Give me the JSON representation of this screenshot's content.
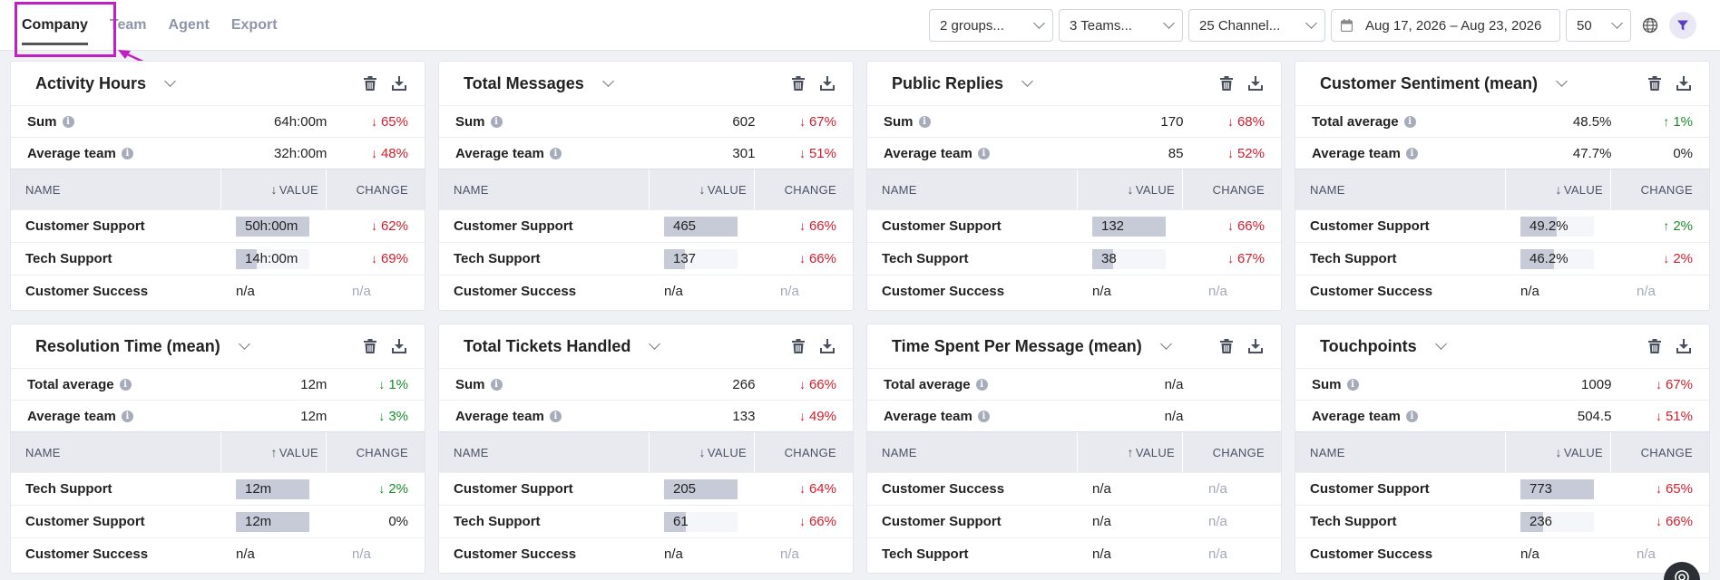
{
  "tabs": [
    {
      "label": "Company",
      "active": true
    },
    {
      "label": "Team",
      "active": false
    },
    {
      "label": "Agent",
      "active": false
    },
    {
      "label": "Export",
      "active": false
    }
  ],
  "filters": {
    "groups": "2 groups...",
    "teams": "3 Teams...",
    "channels": "25 Channel...",
    "date_range": "Aug 17, 2026 – Aug 23, 2026",
    "page_size": "50"
  },
  "icons": {
    "globe": "globe-icon",
    "filter": "filter-icon",
    "delete": "trash-icon",
    "download": "download-icon"
  },
  "colors": {
    "highlight": "#c11fc3",
    "down": "#d0202f",
    "up": "#1e8a2e",
    "filter_accent": "#5b3cc4"
  },
  "table_headers": {
    "name": "NAME",
    "value": "VALUE",
    "change": "CHANGE"
  },
  "cards": [
    {
      "title": "Activity Hours",
      "summary": [
        {
          "label": "Sum",
          "value": "64h:00m",
          "change": "65%",
          "dir": "down"
        },
        {
          "label": "Average team",
          "value": "32h:00m",
          "change": "48%",
          "dir": "down"
        }
      ],
      "sort": "down",
      "rows": [
        {
          "name": "Customer Support",
          "value": "50h:00m",
          "fill": 1.0,
          "change": "62%",
          "dir": "down"
        },
        {
          "name": "Tech Support",
          "value": "14h:00m",
          "fill": 0.28,
          "change": "69%",
          "dir": "down"
        },
        {
          "name": "Customer Success",
          "value": "n/a",
          "fill": null,
          "change": "n/a",
          "dir": "na"
        }
      ]
    },
    {
      "title": "Total Messages",
      "summary": [
        {
          "label": "Sum",
          "value": "602",
          "change": "67%",
          "dir": "down"
        },
        {
          "label": "Average team",
          "value": "301",
          "change": "51%",
          "dir": "down"
        }
      ],
      "sort": "down",
      "rows": [
        {
          "name": "Customer Support",
          "value": "465",
          "fill": 1.0,
          "change": "66%",
          "dir": "down"
        },
        {
          "name": "Tech Support",
          "value": "137",
          "fill": 0.29,
          "change": "66%",
          "dir": "down"
        },
        {
          "name": "Customer Success",
          "value": "n/a",
          "fill": null,
          "change": "n/a",
          "dir": "na"
        }
      ]
    },
    {
      "title": "Public Replies",
      "summary": [
        {
          "label": "Sum",
          "value": "170",
          "change": "68%",
          "dir": "down"
        },
        {
          "label": "Average team",
          "value": "85",
          "change": "52%",
          "dir": "down"
        }
      ],
      "sort": "down",
      "rows": [
        {
          "name": "Customer Support",
          "value": "132",
          "fill": 1.0,
          "change": "66%",
          "dir": "down"
        },
        {
          "name": "Tech Support",
          "value": "38",
          "fill": 0.29,
          "change": "67%",
          "dir": "down"
        },
        {
          "name": "Customer Success",
          "value": "n/a",
          "fill": null,
          "change": "n/a",
          "dir": "na"
        }
      ]
    },
    {
      "title": "Customer Sentiment (mean)",
      "summary": [
        {
          "label": "Total average",
          "value": "48.5%",
          "change": "1%",
          "dir": "up"
        },
        {
          "label": "Average team",
          "value": "47.7%",
          "change": "0%",
          "dir": "none"
        }
      ],
      "sort": "down",
      "rows": [
        {
          "name": "Customer Support",
          "value": "49.2%",
          "fill": 0.49,
          "change": "2%",
          "dir": "up"
        },
        {
          "name": "Tech Support",
          "value": "46.2%",
          "fill": 0.46,
          "change": "2%",
          "dir": "down"
        },
        {
          "name": "Customer Success",
          "value": "n/a",
          "fill": null,
          "change": "n/a",
          "dir": "na"
        }
      ]
    },
    {
      "title": "Resolution Time (mean)",
      "summary": [
        {
          "label": "Total average",
          "value": "12m",
          "change": "1%",
          "dir": "down-good"
        },
        {
          "label": "Average team",
          "value": "12m",
          "change": "3%",
          "dir": "down-good"
        }
      ],
      "sort": "up",
      "rows": [
        {
          "name": "Tech Support",
          "value": "12m",
          "fill": 1.0,
          "change": "2%",
          "dir": "down-good"
        },
        {
          "name": "Customer Support",
          "value": "12m",
          "fill": 1.0,
          "change": "0%",
          "dir": "none"
        },
        {
          "name": "Customer Success",
          "value": "n/a",
          "fill": null,
          "change": "n/a",
          "dir": "na"
        }
      ]
    },
    {
      "title": "Total Tickets Handled",
      "summary": [
        {
          "label": "Sum",
          "value": "266",
          "change": "66%",
          "dir": "down"
        },
        {
          "label": "Average team",
          "value": "133",
          "change": "49%",
          "dir": "down"
        }
      ],
      "sort": "down",
      "rows": [
        {
          "name": "Customer Support",
          "value": "205",
          "fill": 1.0,
          "change": "64%",
          "dir": "down"
        },
        {
          "name": "Tech Support",
          "value": "61",
          "fill": 0.3,
          "change": "66%",
          "dir": "down"
        },
        {
          "name": "Customer Success",
          "value": "n/a",
          "fill": null,
          "change": "n/a",
          "dir": "na"
        }
      ]
    },
    {
      "title": "Time Spent Per Message (mean)",
      "summary": [
        {
          "label": "Total average",
          "value": "n/a",
          "change": "",
          "dir": "none"
        },
        {
          "label": "Average team",
          "value": "n/a",
          "change": "",
          "dir": "none"
        }
      ],
      "sort": "up",
      "rows": [
        {
          "name": "Customer Success",
          "value": "n/a",
          "fill": null,
          "change": "n/a",
          "dir": "na"
        },
        {
          "name": "Customer Support",
          "value": "n/a",
          "fill": null,
          "change": "n/a",
          "dir": "na"
        },
        {
          "name": "Tech Support",
          "value": "n/a",
          "fill": null,
          "change": "n/a",
          "dir": "na"
        }
      ]
    },
    {
      "title": "Touchpoints",
      "summary": [
        {
          "label": "Sum",
          "value": "1009",
          "change": "67%",
          "dir": "down"
        },
        {
          "label": "Average team",
          "value": "504.5",
          "change": "51%",
          "dir": "down"
        }
      ],
      "sort": "down",
      "rows": [
        {
          "name": "Customer Support",
          "value": "773",
          "fill": 1.0,
          "change": "65%",
          "dir": "down"
        },
        {
          "name": "Tech Support",
          "value": "236",
          "fill": 0.31,
          "change": "66%",
          "dir": "down"
        },
        {
          "name": "Customer Success",
          "value": "n/a",
          "fill": null,
          "change": "n/a",
          "dir": "na"
        }
      ]
    }
  ]
}
